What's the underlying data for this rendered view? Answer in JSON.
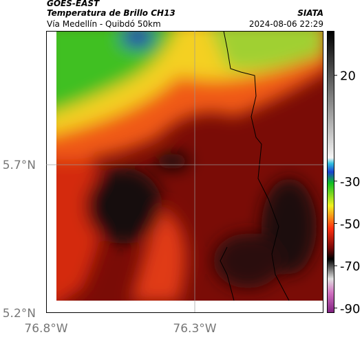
{
  "header": {
    "title": "GOES-EAST",
    "subtitle": "Temperatura de Brillo CH13",
    "source": "SIATA",
    "region": "Vía Medellín - Quibdó 50km",
    "timestamp": "2024-08-06 22:29"
  },
  "axes": {
    "lat_ticks": [
      "5.7°N",
      "5.2°N"
    ],
    "lon_ticks": [
      "76.8°W",
      "76.3°W"
    ]
  },
  "colorbar": {
    "ylim": [
      -92,
      41
    ],
    "ticks": [
      20,
      -30,
      -50,
      -70,
      -90
    ]
  }
}
